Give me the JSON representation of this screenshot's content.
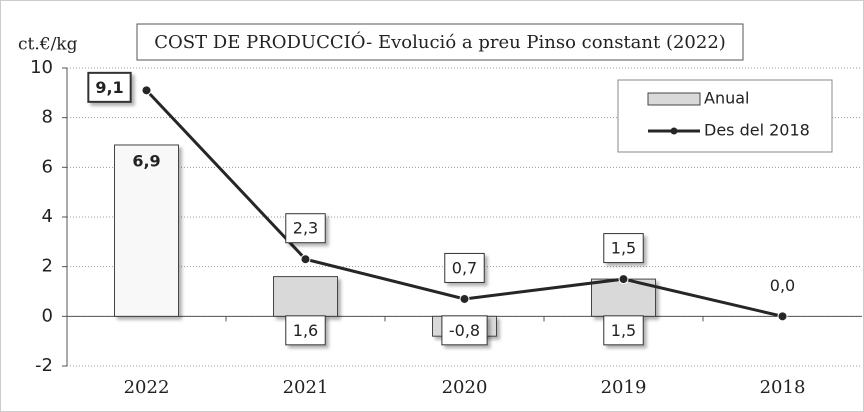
{
  "chart_data": {
    "type": "bar",
    "title": "COST DE PRODUCCIÓ- Evolució a preu Pinso constant (2022)",
    "y_label": "ct.€/kg",
    "categories": [
      "2022",
      "2021",
      "2020",
      "2019",
      "2018"
    ],
    "series": [
      {
        "name": "Anual",
        "type": "bar",
        "color": "#d9d9d9",
        "colors": [
          "#f8f8f8",
          "#d9d9d9",
          "#d9d9d9",
          "#d9d9d9",
          "#d9d9d9"
        ],
        "values": [
          6.9,
          1.6,
          -0.8,
          1.5,
          null
        ],
        "value_labels": [
          "6,9",
          "1,6",
          "-0,8",
          "1,5",
          null
        ]
      },
      {
        "name": "Des del 2018",
        "type": "line",
        "color": "#262626",
        "values": [
          9.1,
          2.3,
          0.7,
          1.5,
          0.0
        ],
        "value_labels": [
          "9,1",
          "2,3",
          "0,7",
          "1,5",
          "0,0"
        ]
      }
    ],
    "ylim": [
      -2,
      10
    ],
    "yticks": [
      -2,
      0,
      2,
      4,
      6,
      8,
      10
    ],
    "grid": true,
    "legend": "top-right"
  }
}
